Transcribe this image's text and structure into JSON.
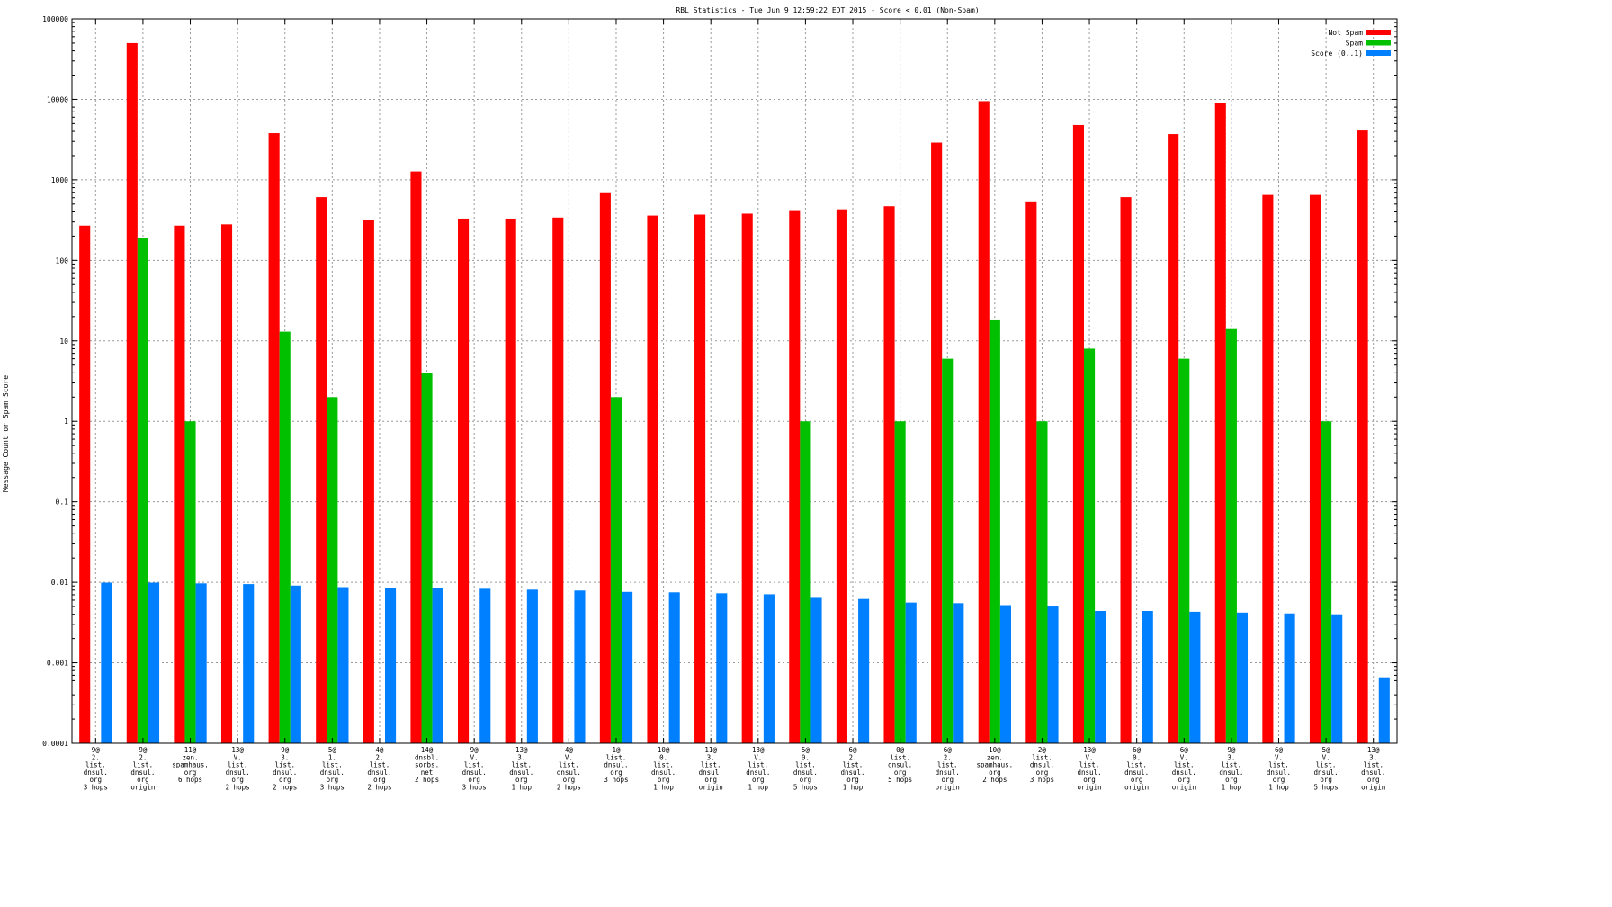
{
  "chart_data": {
    "type": "bar",
    "title": "RBL Statistics - Tue Jun  9 12:59:22 EDT 2015 - Score < 0.01 (Non-Spam)",
    "xlabel": "",
    "ylabel": "Message Count or Spam Score",
    "yscale": "log",
    "ylim": [
      0.0001,
      100000
    ],
    "yticks": [
      "0.0001",
      "0.001",
      "0.01",
      "0.1",
      "1",
      "10",
      "100",
      "1000",
      "10000",
      "100000"
    ],
    "grid": true,
    "legend_position": "top-right",
    "categories": [
      [
        "9@",
        "2.",
        "list.",
        "dnsul.",
        "org",
        "3 hops"
      ],
      [
        "9@",
        "2.",
        "list.",
        "dnsul.",
        "org",
        "origin"
      ],
      [
        "11@",
        "zen.",
        "spamhaus.",
        "org",
        "6 hops"
      ],
      [
        "13@",
        "V.",
        "list.",
        "dnsul.",
        "org",
        "2 hops"
      ],
      [
        "9@",
        "3.",
        "list.",
        "dnsul.",
        "org",
        "2 hops"
      ],
      [
        "5@",
        "1.",
        "list.",
        "dnsul.",
        "org",
        "3 hops"
      ],
      [
        "4@",
        "2.",
        "list.",
        "dnsul.",
        "org",
        "2 hops"
      ],
      [
        "14@",
        "dnsbl.",
        "sorbs.",
        "net",
        "2 hops"
      ],
      [
        "9@",
        "V.",
        "list.",
        "dnsul.",
        "org",
        "3 hops"
      ],
      [
        "13@",
        "3.",
        "list.",
        "dnsul.",
        "org",
        "1 hop"
      ],
      [
        "4@",
        "V.",
        "list.",
        "dnsul.",
        "org",
        "2 hops"
      ],
      [
        "1@",
        "list.",
        "dnsul.",
        "org",
        "3 hops"
      ],
      [
        "10@",
        "0.",
        "list.",
        "dnsul.",
        "org",
        "1 hop"
      ],
      [
        "11@",
        "3.",
        "list.",
        "dnsul.",
        "org",
        "origin"
      ],
      [
        "13@",
        "V.",
        "list.",
        "dnsul.",
        "org",
        "1 hop"
      ],
      [
        "5@",
        "0.",
        "list.",
        "dnsul.",
        "org",
        "5 hops"
      ],
      [
        "6@",
        "2.",
        "list.",
        "dnsul.",
        "org",
        "1 hop"
      ],
      [
        "0@",
        "list.",
        "dnsul.",
        "org",
        "5 hops"
      ],
      [
        "6@",
        "2.",
        "list.",
        "dnsul.",
        "org",
        "origin"
      ],
      [
        "10@",
        "zen.",
        "spamhaus.",
        "org",
        "2 hops"
      ],
      [
        "2@",
        "list.",
        "dnsul.",
        "org",
        "3 hops"
      ],
      [
        "13@",
        "V.",
        "list.",
        "dnsul.",
        "org",
        "origin"
      ],
      [
        "6@",
        "0.",
        "list.",
        "dnsul.",
        "org",
        "origin"
      ],
      [
        "6@",
        "V.",
        "list.",
        "dnsul.",
        "org",
        "origin"
      ],
      [
        "9@",
        "3.",
        "list.",
        "dnsul.",
        "org",
        "1 hop"
      ],
      [
        "6@",
        "V.",
        "list.",
        "dnsul.",
        "org",
        "1 hop"
      ],
      [
        "5@",
        "V.",
        "list.",
        "dnsul.",
        "org",
        "5 hops"
      ],
      [
        "13@",
        "3.",
        "list.",
        "dnsul.",
        "org",
        "origin"
      ]
    ],
    "series": [
      {
        "name": "Not Spam",
        "color": "#ff0000",
        "values": [
          270,
          50000,
          270,
          280,
          3800,
          610,
          320,
          1270,
          330,
          330,
          340,
          700,
          360,
          370,
          380,
          420,
          430,
          470,
          2900,
          9500,
          540,
          4800,
          610,
          3700,
          9000,
          650,
          650,
          4100
        ]
      },
      {
        "name": "Spam",
        "color": "#00c000",
        "values": [
          null,
          190,
          1,
          null,
          13,
          2,
          null,
          4,
          null,
          null,
          null,
          2,
          null,
          null,
          null,
          1,
          null,
          1,
          6,
          18,
          1,
          8,
          null,
          6,
          14,
          null,
          1,
          null
        ]
      },
      {
        "name": "Score (0..1)",
        "color": "#0080ff",
        "values": [
          0.0099,
          0.0099,
          0.0097,
          0.0095,
          0.0091,
          0.0087,
          0.0085,
          0.0084,
          0.0083,
          0.0081,
          0.0079,
          0.0076,
          0.0075,
          0.0073,
          0.0071,
          0.0064,
          0.0062,
          0.0056,
          0.0055,
          0.0052,
          0.005,
          0.0044,
          0.0044,
          0.0043,
          0.0042,
          0.0041,
          0.004,
          0.00066
        ]
      }
    ]
  }
}
